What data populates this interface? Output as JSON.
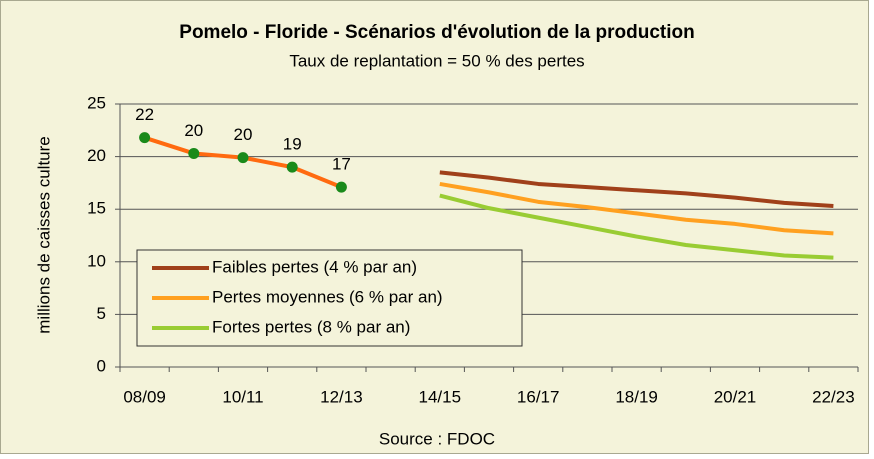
{
  "chart_data": {
    "type": "line",
    "title": "Pomelo - Floride - Scénarios d'évolution de la production",
    "subtitle": "Taux de replantation = 50 % des pertes",
    "y_label": "millions de caisses culture",
    "source": "Source : FDOC",
    "categories": [
      "08/09",
      null,
      "10/11",
      null,
      "12/13",
      null,
      "14/15",
      null,
      "16/17",
      null,
      "18/19",
      null,
      "20/21",
      null,
      "22/23"
    ],
    "ylim": [
      0,
      25
    ],
    "yticks": [
      0,
      5,
      10,
      15,
      20,
      25
    ],
    "grid": true,
    "legend": "lower-left",
    "series": [
      {
        "color": "#ff6a10",
        "marker_color": "#1a8a1a",
        "values": [
          21.8,
          20.3,
          19.9,
          19.0,
          17.1,
          null,
          null,
          null,
          null,
          null,
          null,
          null,
          null,
          null,
          null
        ],
        "value_labels": [
          "22",
          "20",
          "20",
          "19",
          "17",
          null,
          null,
          null,
          null,
          null,
          null,
          null,
          null,
          null,
          null
        ]
      },
      {
        "name": "Faibles pertes (4 % par an)",
        "color": "#a0401a",
        "values": [
          null,
          null,
          null,
          null,
          null,
          null,
          18.5,
          18.0,
          17.4,
          17.1,
          16.8,
          16.5,
          16.1,
          15.6,
          15.3
        ]
      },
      {
        "name": "Pertes moyennes (6 % par an)",
        "color": "#ffa020",
        "values": [
          null,
          null,
          null,
          null,
          null,
          null,
          17.4,
          16.6,
          15.7,
          15.2,
          14.6,
          14.0,
          13.6,
          13.0,
          12.7
        ]
      },
      {
        "name": "Fortes pertes (8 % par an)",
        "color": "#99cc33",
        "values": [
          null,
          null,
          null,
          null,
          null,
          null,
          16.3,
          15.1,
          14.2,
          13.3,
          12.4,
          11.6,
          11.1,
          10.6,
          10.4
        ]
      }
    ]
  }
}
